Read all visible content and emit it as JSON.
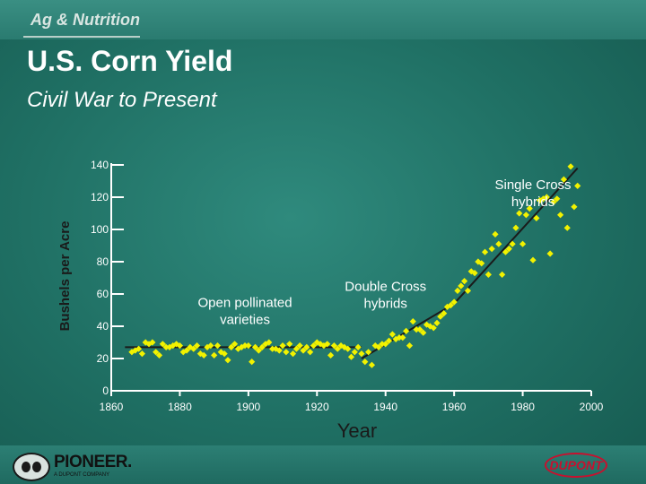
{
  "header": {
    "section": "Ag & Nutrition",
    "title": "U.S. Corn Yield",
    "subtitle": "Civil War to Present"
  },
  "chart_data": {
    "type": "scatter",
    "title": "U.S. Corn Yield",
    "subtitle": "Civil War to Present",
    "xlabel": "Year",
    "ylabel": "Bushels per Acre",
    "xlim": [
      1860,
      2000
    ],
    "ylim": [
      0,
      140
    ],
    "x_ticks": [
      1860,
      1880,
      1900,
      1920,
      1940,
      1960,
      1980,
      2000
    ],
    "y_ticks": [
      0,
      20,
      40,
      60,
      80,
      100,
      120,
      140
    ],
    "grid": false,
    "colors": {
      "points": "#f2f200",
      "trend": "#1a1a1a",
      "axis": "#ffffff",
      "axis_title": "#1a1a1a"
    },
    "annotations": [
      {
        "text_lines": [
          "Open pollinated",
          "varieties"
        ],
        "x": 1899,
        "y": 52
      },
      {
        "text_lines": [
          "Double Cross",
          "hybrids"
        ],
        "x": 1940,
        "y": 62
      },
      {
        "text_lines": [
          "Single Cross",
          "hybrids"
        ],
        "x": 1983,
        "y": 125
      }
    ],
    "trend_lines": [
      {
        "name": "open-pollinated-trend",
        "points": [
          [
            1864,
            27
          ],
          [
            1933,
            27
          ]
        ]
      },
      {
        "name": "double-cross-trend",
        "points": [
          [
            1933,
            20
          ],
          [
            1960,
            54
          ]
        ]
      },
      {
        "name": "single-cross-trend",
        "points": [
          [
            1960,
            54
          ],
          [
            1996,
            138
          ]
        ]
      }
    ],
    "series": [
      {
        "points": [
          [
            1866,
            24
          ],
          [
            1867,
            25
          ],
          [
            1868,
            26
          ],
          [
            1869,
            23
          ],
          [
            1870,
            30
          ],
          [
            1871,
            29
          ],
          [
            1872,
            30
          ],
          [
            1873,
            24
          ],
          [
            1874,
            22
          ],
          [
            1875,
            29
          ],
          [
            1876,
            27
          ],
          [
            1877,
            27
          ],
          [
            1878,
            28
          ],
          [
            1879,
            29
          ],
          [
            1880,
            28
          ],
          [
            1881,
            24
          ],
          [
            1882,
            25
          ],
          [
            1883,
            27
          ],
          [
            1884,
            26
          ],
          [
            1885,
            28
          ],
          [
            1886,
            23
          ],
          [
            1887,
            22
          ],
          [
            1888,
            27
          ],
          [
            1889,
            28
          ],
          [
            1890,
            22
          ],
          [
            1891,
            28
          ],
          [
            1892,
            24
          ],
          [
            1893,
            23
          ],
          [
            1894,
            19
          ],
          [
            1895,
            27
          ],
          [
            1896,
            29
          ],
          [
            1897,
            26
          ],
          [
            1898,
            27
          ],
          [
            1899,
            28
          ],
          [
            1900,
            28
          ],
          [
            1901,
            18
          ],
          [
            1902,
            27
          ],
          [
            1903,
            25
          ],
          [
            1904,
            27
          ],
          [
            1905,
            29
          ],
          [
            1906,
            30
          ],
          [
            1907,
            26
          ],
          [
            1908,
            26
          ],
          [
            1909,
            25
          ],
          [
            1910,
            28
          ],
          [
            1911,
            24
          ],
          [
            1912,
            29
          ],
          [
            1913,
            23
          ],
          [
            1914,
            26
          ],
          [
            1915,
            28
          ],
          [
            1916,
            25
          ],
          [
            1917,
            27
          ],
          [
            1918,
            24
          ],
          [
            1919,
            28
          ],
          [
            1920,
            30
          ],
          [
            1921,
            29
          ],
          [
            1922,
            28
          ],
          [
            1923,
            29
          ],
          [
            1924,
            22
          ],
          [
            1925,
            28
          ],
          [
            1926,
            26
          ],
          [
            1927,
            28
          ],
          [
            1928,
            27
          ],
          [
            1929,
            26
          ],
          [
            1930,
            21
          ],
          [
            1931,
            24
          ],
          [
            1932,
            27
          ],
          [
            1933,
            23
          ],
          [
            1934,
            18
          ],
          [
            1935,
            24
          ],
          [
            1936,
            16
          ],
          [
            1937,
            28
          ],
          [
            1938,
            27
          ],
          [
            1939,
            29
          ],
          [
            1940,
            29
          ],
          [
            1941,
            31
          ],
          [
            1942,
            35
          ],
          [
            1943,
            32
          ],
          [
            1944,
            33
          ],
          [
            1945,
            33
          ],
          [
            1946,
            37
          ],
          [
            1947,
            28
          ],
          [
            1948,
            43
          ],
          [
            1949,
            38
          ],
          [
            1950,
            38
          ],
          [
            1951,
            36
          ],
          [
            1952,
            41
          ],
          [
            1953,
            40
          ],
          [
            1954,
            39
          ],
          [
            1955,
            42
          ],
          [
            1956,
            46
          ],
          [
            1957,
            48
          ],
          [
            1958,
            52
          ],
          [
            1959,
            53
          ],
          [
            1960,
            55
          ],
          [
            1961,
            62
          ],
          [
            1962,
            65
          ],
          [
            1963,
            68
          ],
          [
            1964,
            62
          ],
          [
            1965,
            74
          ],
          [
            1966,
            73
          ],
          [
            1967,
            80
          ],
          [
            1968,
            79
          ],
          [
            1969,
            86
          ],
          [
            1970,
            72
          ],
          [
            1971,
            88
          ],
          [
            1972,
            97
          ],
          [
            1973,
            91
          ],
          [
            1974,
            72
          ],
          [
            1975,
            86
          ],
          [
            1976,
            88
          ],
          [
            1977,
            91
          ],
          [
            1978,
            101
          ],
          [
            1979,
            110
          ],
          [
            1980,
            91
          ],
          [
            1981,
            109
          ],
          [
            1982,
            113
          ],
          [
            1983,
            81
          ],
          [
            1984,
            107
          ],
          [
            1985,
            118
          ],
          [
            1986,
            119
          ],
          [
            1987,
            120
          ],
          [
            1988,
            85
          ],
          [
            1989,
            117
          ],
          [
            1990,
            119
          ],
          [
            1991,
            109
          ],
          [
            1992,
            131
          ],
          [
            1993,
            101
          ],
          [
            1994,
            139
          ],
          [
            1995,
            114
          ],
          [
            1996,
            127
          ]
        ]
      }
    ]
  },
  "footer": {
    "left_logo_name": "PIONEER.",
    "left_logo_sub": "A DUPONT COMPANY",
    "right_logo": "DUPONT"
  }
}
